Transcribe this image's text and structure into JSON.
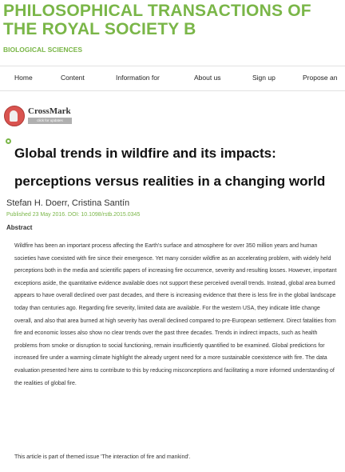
{
  "journal": {
    "title": "PHILOSOPHICAL TRANSACTIONS OF THE ROYAL SOCIETY B",
    "subtitle": "BIOLOGICAL SCIENCES"
  },
  "nav": {
    "items": [
      "Home",
      "Content",
      "Information for",
      "About us",
      "Sign up",
      "Propose an"
    ]
  },
  "crossmark": {
    "label": "CrossMark",
    "sub": "click for updates"
  },
  "article": {
    "title": "Global trends in wildfire and its impacts: perceptions versus realities in a changing world",
    "authors": "Stefan H. Doerr, Cristina Santín",
    "published": "Published 23 May 2016. DOI: 10.1098/rstb.2015.0345",
    "abstract_heading": "Abstract",
    "abstract": "Wildfire has been an important process affecting the Earth's surface and atmosphere for over 350 million years and human societies have coexisted with fire since their emergence. Yet many consider wildfire as an accelerating problem, with widely held perceptions both in the media and scientific papers of increasing fire occurrence, severity and resulting losses. However, important exceptions aside, the quantitative evidence available does not support these perceived overall trends. Instead, global area burned appears to have overall declined over past decades, and there is increasing evidence that there is less fire in the global landscape today than centuries ago. Regarding fire severity, limited data are available. For the western USA, they indicate little change overall, and also that area burned at high severity has overall declined compared to pre-European settlement. Direct fatalities from fire and economic losses also show no clear trends over the past three decades. Trends in indirect impacts, such as health problems from smoke or disruption to social functioning, remain insufficiently quantified to be examined. Global predictions for increased fire under a warming climate highlight the already urgent need for a more sustainable coexistence with fire. The data evaluation presented here aims to contribute to this by reducing misconceptions and facilitating a more informed understanding of the realities of global fire.",
    "themed_issue": "This article is part of themed issue 'The interaction of fire and mankind'."
  },
  "colors": {
    "brand_green": "#7ab648",
    "crossmark_red": "#d9534f"
  }
}
